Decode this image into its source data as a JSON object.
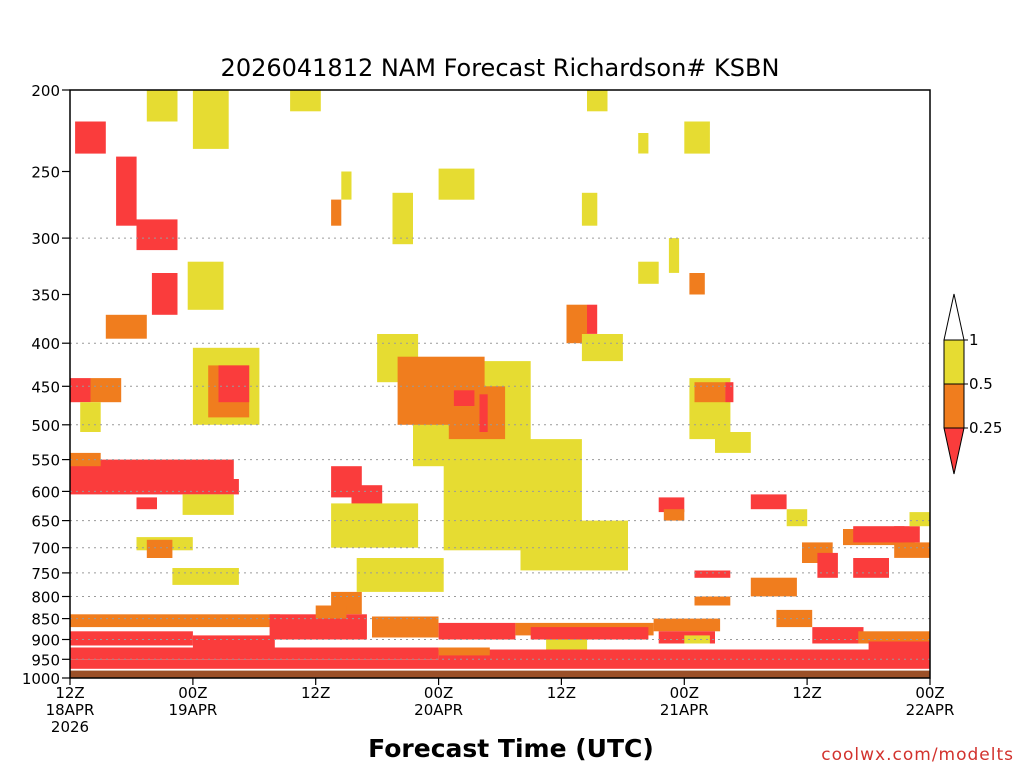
{
  "chart_data": {
    "type": "heatmap",
    "title": "2026041812 NAM Forecast Richardson# KSBN",
    "xlabel": "Forecast Time (UTC)",
    "ylabel": "",
    "credit": "coolwx.com/modelts",
    "y_axis": {
      "scale": "log-pressure",
      "range_hpa": [
        1000,
        200
      ],
      "tick_labels": [
        "200",
        "250",
        "300",
        "350",
        "400",
        "450",
        "500",
        "550",
        "600",
        "650",
        "700",
        "750",
        "800",
        "850",
        "900",
        "950",
        "1000"
      ],
      "tick_values": [
        200,
        250,
        300,
        350,
        400,
        450,
        500,
        550,
        600,
        650,
        700,
        750,
        800,
        850,
        900,
        950,
        1000
      ],
      "gridlines": [
        300,
        400,
        450,
        500,
        550,
        600,
        650,
        700,
        750,
        800,
        850,
        900,
        950,
        1000
      ]
    },
    "x_axis": {
      "range_hours": [
        0,
        84
      ],
      "ticks": [
        {
          "hour": 0,
          "lines": [
            "12Z",
            "18APR",
            "2026"
          ]
        },
        {
          "hour": 12,
          "lines": [
            "00Z",
            "19APR"
          ]
        },
        {
          "hour": 24,
          "lines": [
            "12Z"
          ]
        },
        {
          "hour": 36,
          "lines": [
            "00Z",
            "20APR"
          ]
        },
        {
          "hour": 48,
          "lines": [
            "12Z"
          ]
        },
        {
          "hour": 60,
          "lines": [
            "00Z",
            "21APR"
          ]
        },
        {
          "hour": 72,
          "lines": [
            "12Z"
          ]
        },
        {
          "hour": 84,
          "lines": [
            "00Z",
            "22APR"
          ]
        }
      ]
    },
    "legend": {
      "placement": "right",
      "labels": [
        "1",
        "0.5",
        "0.25"
      ],
      "bins": [
        {
          "range": [
            0.5,
            1
          ],
          "color": "#e6dc32"
        },
        {
          "range": [
            0.25,
            0.5
          ],
          "color": "#f07d1e"
        },
        {
          "range": [
            0,
            0.25
          ],
          "color": "#fa3c3c"
        }
      ],
      "extend_colors": {
        "above": "#ffffff",
        "below": "#fa3c3c"
      }
    },
    "colors": {
      "yellow": "#e6dc32",
      "orange": "#f07d1e",
      "red": "#fa3c3c",
      "ground": "#9b5028"
    },
    "ground": {
      "from_hpa": 980,
      "to_hpa": 1000
    },
    "regions": [
      {
        "c": "yellow",
        "t": [
          7.5,
          10.5
        ],
        "p": [
          200,
          218
        ]
      },
      {
        "c": "yellow",
        "t": [
          12,
          15.5
        ],
        "p": [
          200,
          235
        ]
      },
      {
        "c": "yellow",
        "t": [
          21.5,
          24.5
        ],
        "p": [
          200,
          212
        ]
      },
      {
        "c": "yellow",
        "t": [
          50.5,
          52.5
        ],
        "p": [
          200,
          212
        ]
      },
      {
        "c": "yellow",
        "t": [
          60,
          62.5
        ],
        "p": [
          218,
          238
        ]
      },
      {
        "c": "yellow",
        "t": [
          55.5,
          56.5
        ],
        "p": [
          225,
          238
        ]
      },
      {
        "c": "red",
        "t": [
          0.5,
          3.5
        ],
        "p": [
          218,
          238
        ]
      },
      {
        "c": "red",
        "t": [
          4.5,
          6.5
        ],
        "p": [
          240,
          290
        ]
      },
      {
        "c": "red",
        "t": [
          6.5,
          10.5
        ],
        "p": [
          285,
          310
        ]
      },
      {
        "c": "red",
        "t": [
          8,
          10.5
        ],
        "p": [
          330,
          370
        ]
      },
      {
        "c": "orange",
        "t": [
          3.5,
          7.5
        ],
        "p": [
          370,
          395
        ]
      },
      {
        "c": "yellow",
        "t": [
          11.5,
          15
        ],
        "p": [
          320,
          365
        ]
      },
      {
        "c": "yellow",
        "t": [
          26.5,
          27.5
        ],
        "p": [
          250,
          270
        ]
      },
      {
        "c": "orange",
        "t": [
          25.5,
          26.5
        ],
        "p": [
          270,
          290
        ]
      },
      {
        "c": "yellow",
        "t": [
          31.5,
          33.5
        ],
        "p": [
          265,
          305
        ]
      },
      {
        "c": "yellow",
        "t": [
          36,
          39.5
        ],
        "p": [
          248,
          270
        ]
      },
      {
        "c": "yellow",
        "t": [
          50,
          51.5
        ],
        "p": [
          265,
          290
        ]
      },
      {
        "c": "orange",
        "t": [
          60.5,
          62
        ],
        "p": [
          330,
          350
        ]
      },
      {
        "c": "yellow",
        "t": [
          55.5,
          57.5
        ],
        "p": [
          320,
          340
        ]
      },
      {
        "c": "yellow",
        "t": [
          58.5,
          59.5
        ],
        "p": [
          300,
          330
        ]
      },
      {
        "c": "orange",
        "t": [
          48.5,
          50.5
        ],
        "p": [
          360,
          400
        ]
      },
      {
        "c": "yellow",
        "t": [
          50,
          54
        ],
        "p": [
          390,
          420
        ]
      },
      {
        "c": "red",
        "t": [
          50.5,
          51.5
        ],
        "p": [
          360,
          390
        ]
      },
      {
        "c": "yellow",
        "t": [
          12,
          18.5
        ],
        "p": [
          405,
          500
        ]
      },
      {
        "c": "orange",
        "t": [
          13.5,
          17.5
        ],
        "p": [
          425,
          490
        ]
      },
      {
        "c": "red",
        "t": [
          14.5,
          17.5
        ],
        "p": [
          425,
          470
        ]
      },
      {
        "c": "yellow",
        "t": [
          30,
          34
        ],
        "p": [
          390,
          445
        ]
      },
      {
        "c": "yellow",
        "t": [
          33.5,
          45
        ],
        "p": [
          420,
          560
        ]
      },
      {
        "c": "orange",
        "t": [
          32,
          40.5
        ],
        "p": [
          415,
          500
        ]
      },
      {
        "c": "orange",
        "t": [
          37,
          42.5
        ],
        "p": [
          450,
          545
        ]
      },
      {
        "c": "red",
        "t": [
          37.5,
          39.5
        ],
        "p": [
          455,
          475
        ]
      },
      {
        "c": "red",
        "t": [
          40,
          40.8
        ],
        "p": [
          460,
          510
        ]
      },
      {
        "c": "yellow",
        "t": [
          36.5,
          50
        ],
        "p": [
          520,
          705
        ]
      },
      {
        "c": "yellow",
        "t": [
          44,
          54.5
        ],
        "p": [
          650,
          745
        ]
      },
      {
        "c": "yellow",
        "t": [
          60.5,
          64.5
        ],
        "p": [
          440,
          520
        ]
      },
      {
        "c": "orange",
        "t": [
          61,
          64
        ],
        "p": [
          445,
          470
        ]
      },
      {
        "c": "red",
        "t": [
          64,
          64.8
        ],
        "p": [
          445,
          470
        ]
      },
      {
        "c": "yellow",
        "t": [
          63,
          66.5
        ],
        "p": [
          510,
          540
        ]
      },
      {
        "c": "red",
        "t": [
          0,
          2
        ],
        "p": [
          440,
          470
        ]
      },
      {
        "c": "orange",
        "t": [
          2,
          5
        ],
        "p": [
          440,
          470
        ]
      },
      {
        "c": "yellow",
        "t": [
          1,
          3
        ],
        "p": [
          470,
          510
        ]
      },
      {
        "c": "red",
        "t": [
          0,
          16
        ],
        "p": [
          550,
          580
        ]
      },
      {
        "c": "red",
        "t": [
          0,
          16.5
        ],
        "p": [
          580,
          605
        ]
      },
      {
        "c": "orange",
        "t": [
          0,
          3
        ],
        "p": [
          540,
          560
        ]
      },
      {
        "c": "yellow",
        "t": [
          11,
          16
        ],
        "p": [
          605,
          640
        ]
      },
      {
        "c": "red",
        "t": [
          6.5,
          8.5
        ],
        "p": [
          610,
          630
        ]
      },
      {
        "c": "yellow",
        "t": [
          6.5,
          12
        ],
        "p": [
          680,
          705
        ]
      },
      {
        "c": "orange",
        "t": [
          7.5,
          10
        ],
        "p": [
          685,
          720
        ]
      },
      {
        "c": "yellow",
        "t": [
          10,
          16.5
        ],
        "p": [
          740,
          775
        ]
      },
      {
        "c": "red",
        "t": [
          25.5,
          28.5
        ],
        "p": [
          560,
          610
        ]
      },
      {
        "c": "red",
        "t": [
          27.5,
          30.5
        ],
        "p": [
          590,
          660
        ]
      },
      {
        "c": "yellow",
        "t": [
          25.5,
          34
        ],
        "p": [
          620,
          700
        ]
      },
      {
        "c": "orange",
        "t": [
          25.5,
          28.5
        ],
        "p": [
          790,
          840
        ]
      },
      {
        "c": "yellow",
        "t": [
          28,
          36.5
        ],
        "p": [
          720,
          790
        ]
      },
      {
        "c": "red",
        "t": [
          57.5,
          60
        ],
        "p": [
          610,
          635
        ]
      },
      {
        "c": "orange",
        "t": [
          58,
          60
        ],
        "p": [
          630,
          650
        ]
      },
      {
        "c": "red",
        "t": [
          66.5,
          70
        ],
        "p": [
          605,
          630
        ]
      },
      {
        "c": "yellow",
        "t": [
          70,
          72
        ],
        "p": [
          630,
          660
        ]
      },
      {
        "c": "orange",
        "t": [
          71.5,
          74.5
        ],
        "p": [
          690,
          730
        ]
      },
      {
        "c": "red",
        "t": [
          73,
          75
        ],
        "p": [
          710,
          760
        ]
      },
      {
        "c": "orange",
        "t": [
          75.5,
          82.5
        ],
        "p": [
          665,
          695
        ]
      },
      {
        "c": "red",
        "t": [
          76.5,
          81.5
        ],
        "p": [
          660,
          690
        ]
      },
      {
        "c": "red",
        "t": [
          76.5,
          80
        ],
        "p": [
          720,
          760
        ]
      },
      {
        "c": "orange",
        "t": [
          80.5,
          84
        ],
        "p": [
          690,
          720
        ]
      },
      {
        "c": "red",
        "t": [
          80.5,
          83
        ],
        "p": [
          660,
          690
        ]
      },
      {
        "c": "yellow",
        "t": [
          82,
          84
        ],
        "p": [
          635,
          660
        ]
      },
      {
        "c": "orange",
        "t": [
          66.5,
          71
        ],
        "p": [
          760,
          800
        ]
      },
      {
        "c": "orange",
        "t": [
          61,
          64.5
        ],
        "p": [
          800,
          820
        ]
      },
      {
        "c": "red",
        "t": [
          61,
          64.5
        ],
        "p": [
          745,
          760
        ]
      },
      {
        "c": "orange",
        "t": [
          0,
          20.5
        ],
        "p": [
          840,
          870
        ]
      },
      {
        "c": "red",
        "t": [
          19.5,
          29
        ],
        "p": [
          840,
          900
        ]
      },
      {
        "c": "orange",
        "t": [
          24,
          27
        ],
        "p": [
          820,
          850
        ]
      },
      {
        "c": "orange",
        "t": [
          29.5,
          36
        ],
        "p": [
          845,
          895
        ]
      },
      {
        "c": "red",
        "t": [
          36,
          43.5
        ],
        "p": [
          860,
          900
        ]
      },
      {
        "c": "orange",
        "t": [
          43.5,
          57
        ],
        "p": [
          860,
          890
        ]
      },
      {
        "c": "red",
        "t": [
          45,
          56.5
        ],
        "p": [
          870,
          900
        ]
      },
      {
        "c": "orange",
        "t": [
          57,
          63.5
        ],
        "p": [
          850,
          880
        ]
      },
      {
        "c": "yellow",
        "t": [
          46.5,
          50.5
        ],
        "p": [
          900,
          925
        ]
      },
      {
        "c": "red",
        "t": [
          57.5,
          63
        ],
        "p": [
          880,
          910
        ]
      },
      {
        "c": "orange",
        "t": [
          69,
          72.5
        ],
        "p": [
          830,
          870
        ]
      },
      {
        "c": "red",
        "t": [
          72.5,
          77.5
        ],
        "p": [
          870,
          910
        ]
      },
      {
        "c": "orange",
        "t": [
          77,
          84
        ],
        "p": [
          880,
          910
        ]
      },
      {
        "c": "red",
        "t": [
          78,
          84
        ],
        "p": [
          905,
          935
        ]
      },
      {
        "c": "yellow",
        "t": [
          60,
          62.5
        ],
        "p": [
          890,
          910
        ]
      },
      {
        "c": "red",
        "t": [
          0,
          36
        ],
        "p": [
          920,
          950
        ]
      },
      {
        "c": "red",
        "t": [
          0,
          84
        ],
        "p": [
          950,
          975
        ]
      },
      {
        "c": "red",
        "t": [
          36,
          84
        ],
        "p": [
          925,
          955
        ]
      },
      {
        "c": "orange",
        "t": [
          36,
          41
        ],
        "p": [
          920,
          940
        ]
      },
      {
        "c": "red",
        "t": [
          0,
          12
        ],
        "p": [
          880,
          915
        ]
      },
      {
        "c": "red",
        "t": [
          12,
          20
        ],
        "p": [
          890,
          930
        ]
      }
    ]
  }
}
